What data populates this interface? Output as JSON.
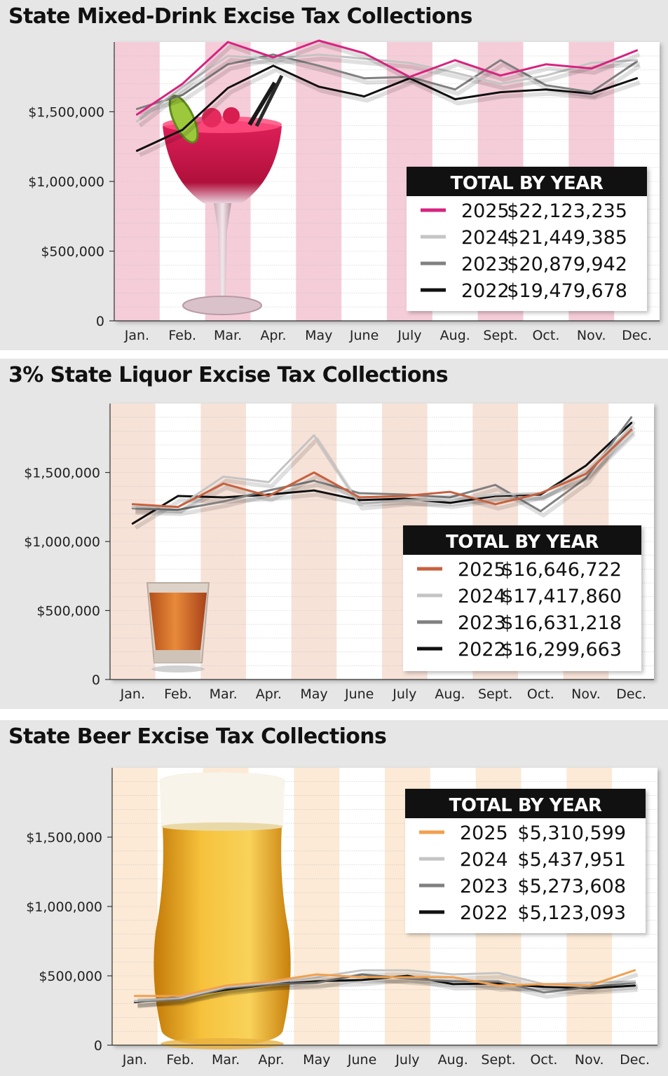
{
  "chart_data": [
    {
      "type": "line",
      "title": "State Mixed-Drink Excise Tax Collections",
      "categories": [
        "Jan.",
        "Feb.",
        "Mar.",
        "Apr.",
        "May",
        "June",
        "July",
        "Aug.",
        "Sept.",
        "Oct.",
        "Nov.",
        "Dec."
      ],
      "ylim": [
        0,
        2000000
      ],
      "yticks": [
        {
          "value": 0,
          "label": "0"
        },
        {
          "value": 500000,
          "label": "$500,000"
        },
        {
          "value": 1000000,
          "label": "$1,000,000"
        },
        {
          "value": 1500000,
          "label": "$1,500,000"
        }
      ],
      "band_color": "#f5cdd9",
      "grid": true,
      "legend_position": "lower-right",
      "legend_title": "TOTAL BY YEAR",
      "illustration": "margarita-glass",
      "series": [
        {
          "name": "2025",
          "total": "$22,123,235",
          "color": "#d6247f",
          "values": [
            1480000,
            1700000,
            2000000,
            1890000,
            2010000,
            1920000,
            1750000,
            1870000,
            1760000,
            1840000,
            1810000,
            1940000
          ]
        },
        {
          "name": "2024",
          "total": "$21,449,385",
          "color": "#c4c4c4",
          "values": [
            1430000,
            1680000,
            1900000,
            1880000,
            1910000,
            1880000,
            1850000,
            1780000,
            1700000,
            1760000,
            1850000,
            1870000
          ]
        },
        {
          "name": "2023",
          "total": "$20,879,942",
          "color": "#808080",
          "values": [
            1520000,
            1620000,
            1840000,
            1910000,
            1830000,
            1740000,
            1750000,
            1660000,
            1870000,
            1690000,
            1640000,
            1860000
          ]
        },
        {
          "name": "2022",
          "total": "$19,479,678",
          "color": "#111111",
          "values": [
            1220000,
            1370000,
            1670000,
            1830000,
            1680000,
            1610000,
            1740000,
            1590000,
            1640000,
            1660000,
            1630000,
            1740000
          ]
        }
      ]
    },
    {
      "type": "line",
      "title": "3% State Liquor Excise Tax Collections",
      "categories": [
        "Jan.",
        "Feb.",
        "Mar.",
        "Apr.",
        "May",
        "June",
        "July",
        "Aug.",
        "Sept.",
        "Oct.",
        "Nov.",
        "Dec."
      ],
      "ylim": [
        0,
        2000000
      ],
      "yticks": [
        {
          "value": 0,
          "label": "0"
        },
        {
          "value": 500000,
          "label": "$500,000"
        },
        {
          "value": 1000000,
          "label": "$1,000,000"
        },
        {
          "value": 1500000,
          "label": "$1,500,000"
        }
      ],
      "band_color": "#f7e2d8",
      "grid": true,
      "legend_position": "lower-right",
      "legend_title": "TOTAL BY YEAR",
      "illustration": "shot-glass",
      "series": [
        {
          "name": "2025",
          "total": "$16,646,722",
          "color": "#c8603d",
          "values": [
            1270000,
            1250000,
            1420000,
            1330000,
            1500000,
            1320000,
            1330000,
            1360000,
            1270000,
            1350000,
            1490000,
            1810000
          ]
        },
        {
          "name": "2024",
          "total": "$17,417,860",
          "color": "#c4c4c4",
          "values": [
            1250000,
            1250000,
            1470000,
            1430000,
            1770000,
            1270000,
            1300000,
            1300000,
            1340000,
            1350000,
            1500000,
            1830000
          ]
        },
        {
          "name": "2023",
          "total": "$16,631,218",
          "color": "#808080",
          "values": [
            1240000,
            1230000,
            1290000,
            1370000,
            1440000,
            1350000,
            1340000,
            1320000,
            1410000,
            1220000,
            1460000,
            1900000
          ]
        },
        {
          "name": "2022",
          "total": "$16,299,663",
          "color": "#111111",
          "values": [
            1130000,
            1330000,
            1320000,
            1340000,
            1370000,
            1300000,
            1310000,
            1280000,
            1330000,
            1340000,
            1550000,
            1860000
          ]
        }
      ]
    },
    {
      "type": "line",
      "title": "State Beer Excise Tax Collections",
      "categories": [
        "Jan.",
        "Feb.",
        "Mar.",
        "Apr.",
        "May",
        "June",
        "July",
        "Aug.",
        "Sept.",
        "Oct.",
        "Nov.",
        "Dec."
      ],
      "ylim": [
        0,
        2000000
      ],
      "yticks": [
        {
          "value": 0,
          "label": "0"
        },
        {
          "value": 500000,
          "label": "$500,000"
        },
        {
          "value": 1000000,
          "label": "$1,000,000"
        },
        {
          "value": 1500000,
          "label": "$1,500,000"
        }
      ],
      "band_color": "#fcead6",
      "grid": true,
      "legend_position": "upper-right",
      "legend_title": "TOTAL BY YEAR",
      "illustration": "beer-glass",
      "series": [
        {
          "name": "2025",
          "total": "$5,310,599",
          "color": "#f0a050",
          "values": [
            355000,
            355000,
            430000,
            460000,
            510000,
            490000,
            490000,
            490000,
            430000,
            440000,
            430000,
            540000
          ]
        },
        {
          "name": "2024",
          "total": "$5,437,951",
          "color": "#c4c4c4",
          "values": [
            320000,
            340000,
            420000,
            450000,
            490000,
            540000,
            540000,
            510000,
            520000,
            440000,
            450000,
            460000
          ]
        },
        {
          "name": "2023",
          "total": "$5,273,608",
          "color": "#808080",
          "values": [
            315000,
            330000,
            410000,
            440000,
            450000,
            510000,
            480000,
            460000,
            460000,
            380000,
            420000,
            450000
          ]
        },
        {
          "name": "2022",
          "total": "$5,123,093",
          "color": "#111111",
          "values": [
            310000,
            345000,
            400000,
            440000,
            460000,
            470000,
            500000,
            440000,
            445000,
            420000,
            410000,
            430000
          ]
        }
      ]
    }
  ]
}
